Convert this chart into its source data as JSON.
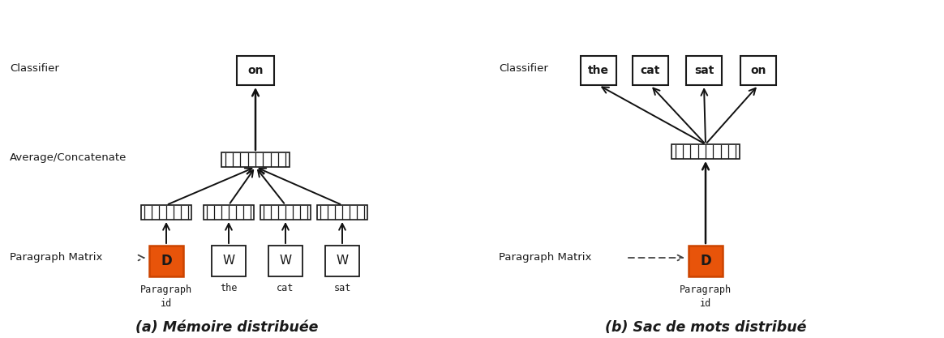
{
  "fig_width": 11.64,
  "fig_height": 4.17,
  "bg_color": "#ffffff",
  "orange_color": "#E8540A",
  "orange_edge": "#CC4400",
  "box_edge": "#1a1a1a",
  "text_color": "#1a1a1a",
  "arrow_color": "#111111",
  "dashed_color": "#444444",
  "subtitle_a": "(a) Mémoire distribuée",
  "subtitle_b": "(b) Sac de mots distribué",
  "label_classifier": "Classifier",
  "label_avgconcat": "Average/Concatenate",
  "label_para_matrix": "Paragraph Matrix"
}
